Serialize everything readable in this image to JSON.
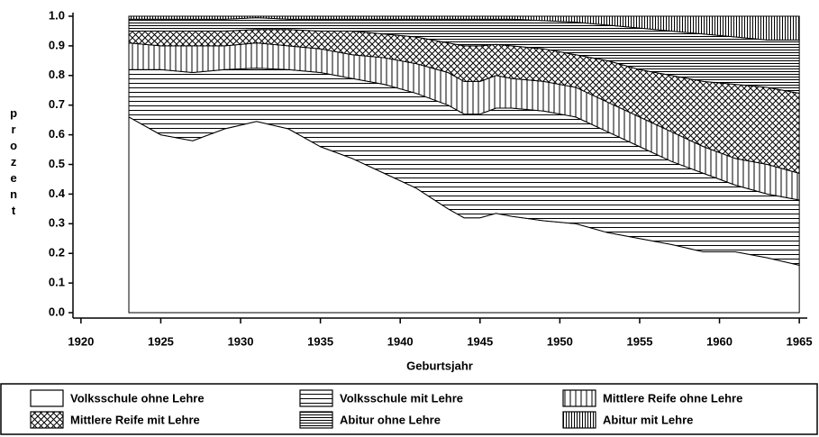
{
  "chart_data": {
    "type": "stacked-area",
    "xlabel": "Geburtsjahr",
    "ylabel": "prozent",
    "x": [
      1923,
      1925,
      1927,
      1929,
      1931,
      1933,
      1935,
      1937,
      1939,
      1941,
      1943,
      1944,
      1945,
      1946,
      1947,
      1949,
      1951,
      1953,
      1955,
      1957,
      1959,
      1961,
      1963,
      1965
    ],
    "series": [
      {
        "name": "Volksschule ohne Lehre",
        "color": "#000000",
        "pattern": "none",
        "values": [
          0.66,
          0.6,
          0.58,
          0.62,
          0.645,
          0.62,
          0.56,
          0.52,
          0.47,
          0.42,
          0.35,
          0.32,
          0.32,
          0.335,
          0.325,
          0.31,
          0.3,
          0.27,
          0.25,
          0.23,
          0.205,
          0.205,
          0.185,
          0.16
        ]
      },
      {
        "name": "Volksschule mit Lehre",
        "color": "#000000",
        "pattern": "horizontal",
        "values": [
          0.16,
          0.22,
          0.23,
          0.2,
          0.18,
          0.2,
          0.25,
          0.27,
          0.3,
          0.32,
          0.35,
          0.35,
          0.35,
          0.355,
          0.365,
          0.37,
          0.36,
          0.34,
          0.31,
          0.28,
          0.265,
          0.225,
          0.215,
          0.22
        ]
      },
      {
        "name": "Mittlere Reife ohne Lehre",
        "color": "#000000",
        "pattern": "vertical",
        "values": [
          0.09,
          0.08,
          0.09,
          0.08,
          0.085,
          0.08,
          0.08,
          0.08,
          0.09,
          0.1,
          0.11,
          0.11,
          0.11,
          0.11,
          0.1,
          0.1,
          0.1,
          0.1,
          0.1,
          0.1,
          0.09,
          0.09,
          0.1,
          0.09
        ]
      },
      {
        "name": "Mittlere Reife mit Lehre",
        "color": "#000000",
        "pattern": "crosshatch",
        "values": [
          0.04,
          0.05,
          0.05,
          0.05,
          0.045,
          0.055,
          0.06,
          0.08,
          0.08,
          0.09,
          0.1,
          0.12,
          0.12,
          0.105,
          0.11,
          0.11,
          0.11,
          0.14,
          0.16,
          0.19,
          0.22,
          0.25,
          0.26,
          0.27
        ]
      },
      {
        "name": "Abitur ohne Lehre",
        "color": "#000000",
        "pattern": "horizontal-dense",
        "values": [
          0.04,
          0.04,
          0.04,
          0.04,
          0.04,
          0.035,
          0.04,
          0.04,
          0.05,
          0.06,
          0.08,
          0.09,
          0.09,
          0.085,
          0.09,
          0.095,
          0.11,
          0.12,
          0.14,
          0.15,
          0.16,
          0.16,
          0.16,
          0.18
        ]
      },
      {
        "name": "Abitur mit Lehre",
        "color": "#000000",
        "pattern": "vertical-dense",
        "values": [
          0.01,
          0.01,
          0.01,
          0.01,
          0.005,
          0.01,
          0.01,
          0.01,
          0.01,
          0.01,
          0.01,
          0.01,
          0.01,
          0.01,
          0.01,
          0.015,
          0.02,
          0.03,
          0.04,
          0.05,
          0.06,
          0.07,
          0.08,
          0.08
        ]
      }
    ],
    "xlim": [
      1919.5,
      1965.5
    ],
    "xticks": [
      1920,
      1925,
      1930,
      1935,
      1940,
      1945,
      1950,
      1955,
      1960,
      1965
    ],
    "ylim": [
      0,
      1
    ],
    "yticks": [
      {
        "value": 0,
        "label": "0.0"
      },
      0.1,
      0.2,
      0.3,
      0.4,
      0.5,
      0.6,
      0.7,
      0.8,
      0.9,
      {
        "value": 1,
        "label": "1.0"
      }
    ],
    "legend": "bottom"
  }
}
